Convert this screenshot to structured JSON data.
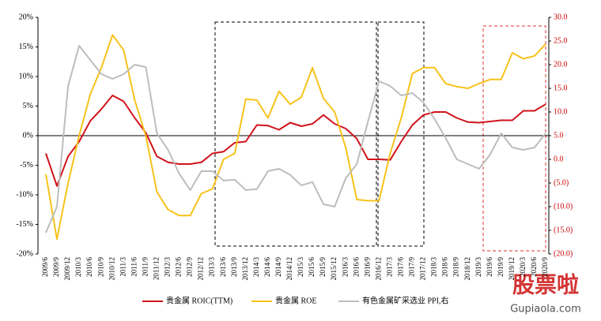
{
  "chart_data": {
    "type": "line",
    "categories": [
      "2009/6",
      "2009/9",
      "2009/12",
      "2010/3",
      "2010/6",
      "2010/9",
      "2010/12",
      "2011/3",
      "2011/6",
      "2011/9",
      "2011/12",
      "2012/3",
      "2012/6",
      "2012/9",
      "2012/12",
      "2013/3",
      "2013/6",
      "2013/9",
      "2013/12",
      "2014/3",
      "2014/6",
      "2014/9",
      "2014/12",
      "2015/3",
      "2015/6",
      "2015/9",
      "2015/12",
      "2016/3",
      "2016/6",
      "2016/9",
      "2016/12",
      "2017/3",
      "2017/6",
      "2017/9",
      "2017/12",
      "2018/3",
      "2018/6",
      "2018/9",
      "2018/12",
      "2019/3",
      "2019/6",
      "2019/9",
      "2019/12",
      "2020/3",
      "2020/6",
      "2020/9"
    ],
    "series": [
      {
        "name": "贵金属 ROIC(TTM)",
        "color": "#d0131b",
        "values": [
          -3,
          -8.5,
          -3.5,
          -1,
          2.5,
          4.5,
          6.8,
          5.8,
          3,
          0.5,
          -3.5,
          -4.5,
          -4.8,
          -4.8,
          -4.5,
          -3,
          -2.7,
          -1.2,
          -1,
          1.8,
          1.7,
          1,
          2.2,
          1.6,
          2,
          3.5,
          2,
          1.2,
          -0.5,
          -4,
          -4,
          -4.1,
          -1,
          1.8,
          3.5,
          4,
          4,
          3,
          2.3,
          2.2,
          2.4,
          2.6,
          2.6,
          4.2,
          4.2,
          5.3
        ]
      },
      {
        "name": "贵金属 ROE",
        "color": "#f7c21b",
        "values": [
          -6.5,
          -17.5,
          -8,
          0,
          7,
          11.5,
          17,
          14.5,
          6,
          0,
          -9.5,
          -12.5,
          -13.5,
          -13.5,
          -9.8,
          -9,
          -4,
          -3,
          6.2,
          6,
          3,
          7.5,
          5.3,
          6.5,
          11.5,
          6.3,
          4,
          -2,
          -10.8,
          -11,
          -11,
          -3,
          3,
          10.5,
          11.5,
          11.5,
          8.8,
          8.3,
          8,
          8.8,
          9.5,
          9.5,
          14,
          13,
          13.5,
          15.5
        ]
      },
      {
        "name": "有色金属矿采选业 PPI,右",
        "color": "#bdbdbd",
        "axis": "y2",
        "values": [
          -15.5,
          -10,
          15.5,
          24,
          21,
          18,
          17,
          18,
          20,
          19.5,
          5.5,
          2,
          -3,
          -6.5,
          -2.5,
          -2.5,
          -4.5,
          -4.3,
          -6.5,
          -6.3,
          -2.5,
          -2,
          -3.3,
          -5.5,
          -4.8,
          -9.5,
          -10,
          -4,
          -1,
          8,
          16.5,
          15.5,
          13.5,
          14,
          12,
          8.5,
          4.5,
          0,
          -1,
          -2,
          1,
          5.5,
          2.5,
          2,
          2.5,
          5.5
        ]
      }
    ],
    "ylim": [
      -20,
      20
    ],
    "yticks": [
      {
        "value": -20,
        "label": "-20%"
      },
      {
        "value": -15,
        "label": "-15%"
      },
      {
        "value": -10,
        "label": "-10%"
      },
      {
        "value": -5,
        "label": "-5%"
      },
      {
        "value": 0,
        "label": "0%"
      },
      {
        "value": 5,
        "label": "5%"
      },
      {
        "value": 10,
        "label": "10%"
      },
      {
        "value": 15,
        "label": "15%"
      },
      {
        "value": 20,
        "label": "20%"
      }
    ],
    "y2lim": [
      -20,
      30
    ],
    "y2ticks": [
      {
        "value": -20,
        "label": "(20.0)"
      },
      {
        "value": -15,
        "label": "(15.0)"
      },
      {
        "value": -10,
        "label": "(10.0)"
      },
      {
        "value": -5,
        "label": "(5.0)"
      },
      {
        "value": 0,
        "label": "0.0"
      },
      {
        "value": 5,
        "label": "5.0"
      },
      {
        "value": 10,
        "label": "10.0"
      },
      {
        "value": 15,
        "label": "15.0"
      },
      {
        "value": 20,
        "label": "20.0"
      },
      {
        "value": 25,
        "label": "25.0"
      },
      {
        "value": 30,
        "label": "30.0"
      }
    ],
    "grid": false,
    "legend": "bottom"
  },
  "watermark": {
    "text": "股票啦",
    "site": "Gupiaola.com"
  }
}
